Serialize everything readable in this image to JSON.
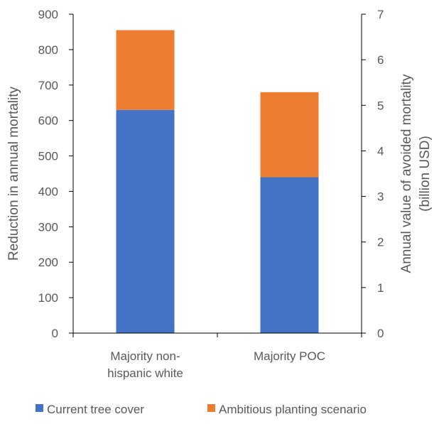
{
  "chart_data": {
    "type": "bar",
    "stacked": true,
    "categories": [
      "Majority non-hispanic white",
      "Majority POC"
    ],
    "category_lines": [
      [
        "Majority non-",
        "hispanic white"
      ],
      [
        "Majority POC"
      ]
    ],
    "series": [
      {
        "name": "Current tree cover",
        "values": [
          630,
          440
        ],
        "color": "#4472C4"
      },
      {
        "name": "Ambitious planting scenario",
        "values": [
          225,
          240
        ],
        "color": "#ED7D31"
      }
    ],
    "ylabel": "Reduction in annual mortality",
    "ylim": [
      0,
      900
    ],
    "yticks": [
      0,
      100,
      200,
      300,
      400,
      500,
      600,
      700,
      800,
      900
    ],
    "y2label_lines": [
      "Annual value of avoided mortality",
      "(billion USD)"
    ],
    "y2lim": [
      0,
      7
    ],
    "y2ticks": [
      0,
      1,
      2,
      3,
      4,
      5,
      6,
      7
    ],
    "grid": false,
    "legend_position": "bottom"
  }
}
